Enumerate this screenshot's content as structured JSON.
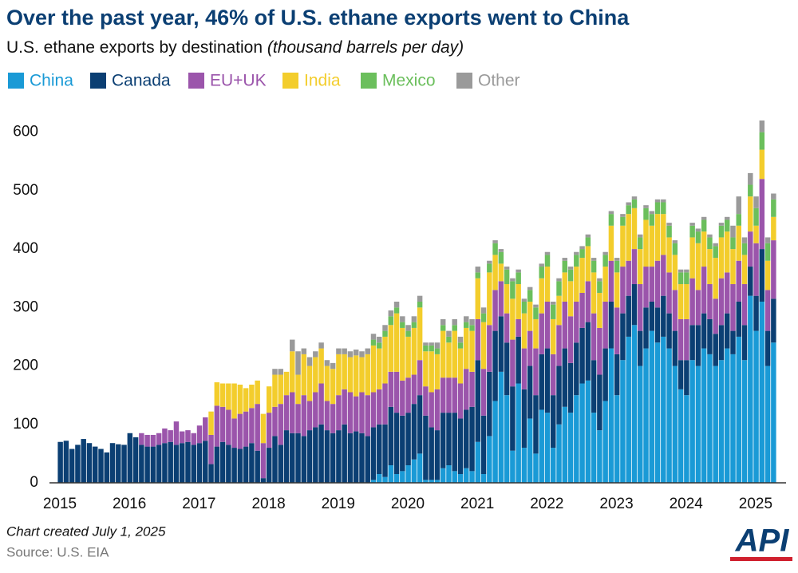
{
  "chart_data": {
    "type": "stacked_bar",
    "title": "Over the past year, 46% of U.S. ethane exports went to China",
    "subtitle": "U.S. ethane exports by destination",
    "subtitle_units": "(thousand barrels per day)",
    "note": "Chart created July 1, 2025",
    "source": "Source: U.S. EIA",
    "logo": "API",
    "categories": [
      "2015",
      null,
      null,
      null,
      null,
      null,
      null,
      null,
      null,
      null,
      null,
      null,
      "2016",
      null,
      null,
      null,
      null,
      null,
      null,
      null,
      null,
      null,
      null,
      null,
      "2017",
      null,
      null,
      null,
      null,
      null,
      null,
      null,
      null,
      null,
      null,
      null,
      "2018",
      null,
      null,
      null,
      null,
      null,
      null,
      null,
      null,
      null,
      null,
      null,
      "2019",
      null,
      null,
      null,
      null,
      null,
      null,
      null,
      null,
      null,
      null,
      null,
      "2020",
      null,
      null,
      null,
      null,
      null,
      null,
      null,
      null,
      null,
      null,
      null,
      "2021",
      null,
      null,
      null,
      null,
      null,
      null,
      null,
      null,
      null,
      null,
      null,
      "2022",
      null,
      null,
      null,
      null,
      null,
      null,
      null,
      null,
      null,
      null,
      null,
      "2023",
      null,
      null,
      null,
      null,
      null,
      null,
      null,
      null,
      null,
      null,
      null,
      "2024",
      null,
      null,
      null,
      null,
      null,
      null,
      null,
      null,
      null,
      null,
      null,
      "2025",
      null,
      null,
      null
    ],
    "ylim": [
      0,
      650
    ],
    "yticks": [
      0,
      100,
      200,
      300,
      400,
      500,
      600
    ],
    "grid": false,
    "legend": "top",
    "series": [
      {
        "name": "China",
        "color": "#1a9ad6",
        "values": [
          0,
          0,
          0,
          0,
          0,
          0,
          0,
          0,
          0,
          0,
          0,
          0,
          0,
          0,
          0,
          0,
          0,
          0,
          0,
          0,
          0,
          0,
          0,
          0,
          0,
          0,
          0,
          0,
          0,
          0,
          0,
          0,
          0,
          0,
          0,
          0,
          0,
          0,
          0,
          0,
          0,
          0,
          0,
          0,
          0,
          0,
          0,
          0,
          0,
          0,
          0,
          0,
          0,
          0,
          5,
          15,
          10,
          30,
          15,
          20,
          30,
          40,
          50,
          5,
          5,
          5,
          25,
          30,
          20,
          15,
          25,
          20,
          70,
          15,
          80,
          140,
          190,
          150,
          55,
          170,
          60,
          110,
          50,
          125,
          120,
          60,
          100,
          130,
          120,
          150,
          170,
          175,
          120,
          90,
          140,
          230,
          150,
          210,
          250,
          270,
          200,
          230,
          260,
          240,
          250,
          230,
          200,
          160,
          150,
          210,
          200,
          230,
          220,
          200,
          210,
          230,
          220,
          250,
          210,
          320,
          260,
          310,
          200,
          240
        ]
      },
      {
        "name": "Canada",
        "color": "#0b3f73",
        "values": [
          70,
          72,
          58,
          65,
          75,
          68,
          62,
          58,
          52,
          68,
          66,
          65,
          85,
          78,
          65,
          62,
          62,
          65,
          68,
          70,
          65,
          68,
          70,
          65,
          68,
          72,
          32,
          62,
          70,
          65,
          60,
          58,
          62,
          68,
          55,
          8,
          60,
          80,
          65,
          90,
          85,
          85,
          80,
          90,
          95,
          100,
          90,
          85,
          90,
          100,
          85,
          88,
          85,
          80,
          90,
          85,
          90,
          100,
          105,
          95,
          90,
          95,
          100,
          110,
          90,
          85,
          95,
          90,
          100,
          95,
          100,
          110,
          140,
          100,
          110,
          120,
          95,
          90,
          110,
          80,
          100,
          90,
          100,
          95,
          110,
          90,
          100,
          100,
          85,
          90,
          95,
          100,
          90,
          95,
          90,
          80,
          70,
          80,
          70,
          70,
          60,
          70,
          50,
          60,
          70,
          60,
          60,
          50,
          60,
          60,
          70,
          60,
          60,
          55,
          60,
          60,
          40,
          60,
          60,
          50,
          60,
          90,
          60,
          75
        ]
      },
      {
        "name": "EU+UK",
        "color": "#9b55ab",
        "values": [
          0,
          0,
          0,
          0,
          0,
          0,
          0,
          0,
          0,
          0,
          0,
          0,
          0,
          0,
          20,
          20,
          20,
          20,
          25,
          20,
          40,
          20,
          20,
          20,
          30,
          40,
          50,
          70,
          60,
          60,
          50,
          60,
          60,
          60,
          80,
          60,
          60,
          50,
          70,
          60,
          70,
          50,
          70,
          50,
          60,
          70,
          50,
          50,
          60,
          60,
          70,
          60,
          70,
          70,
          60,
          60,
          70,
          60,
          70,
          60,
          60,
          50,
          60,
          50,
          60,
          70,
          60,
          60,
          60,
          60,
          70,
          60,
          70,
          80,
          80,
          70,
          60,
          50,
          80,
          30,
          70,
          60,
          80,
          70,
          80,
          70,
          70,
          80,
          80,
          70,
          60,
          70,
          80,
          80,
          80,
          70,
          80,
          80,
          60,
          60,
          80,
          70,
          60,
          80,
          70,
          70,
          70,
          70,
          70,
          80,
          60,
          80,
          60,
          60,
          80,
          70,
          80,
          70,
          70,
          60,
          90,
          120,
          70,
          100
        ]
      },
      {
        "name": "India",
        "color": "#f3cd2c",
        "values": [
          0,
          0,
          0,
          0,
          0,
          0,
          0,
          0,
          0,
          0,
          0,
          0,
          0,
          0,
          0,
          0,
          0,
          0,
          0,
          0,
          0,
          0,
          0,
          0,
          0,
          0,
          40,
          40,
          40,
          45,
          60,
          50,
          40,
          40,
          40,
          50,
          45,
          55,
          50,
          40,
          70,
          50,
          70,
          60,
          60,
          60,
          60,
          60,
          70,
          60,
          60,
          70,
          60,
          70,
          80,
          70,
          80,
          80,
          100,
          90,
          70,
          80,
          90,
          60,
          70,
          60,
          80,
          60,
          80,
          60,
          70,
          70,
          70,
          80,
          90,
          60,
          30,
          50,
          70,
          60,
          60,
          50,
          50,
          60,
          60,
          60,
          50,
          50,
          60,
          60,
          60,
          60,
          70,
          60,
          60,
          60,
          60,
          70,
          80,
          70,
          60,
          80,
          70,
          80,
          70,
          60,
          60,
          60,
          60,
          70,
          80,
          60,
          60,
          70,
          70,
          70,
          60,
          60,
          50,
          60,
          30,
          50,
          50,
          40
        ]
      },
      {
        "name": "Mexico",
        "color": "#6bbf5c",
        "values": [
          0,
          0,
          0,
          0,
          0,
          0,
          0,
          0,
          0,
          0,
          0,
          0,
          0,
          0,
          0,
          0,
          0,
          0,
          0,
          0,
          0,
          0,
          0,
          0,
          0,
          0,
          0,
          0,
          0,
          0,
          0,
          0,
          0,
          0,
          0,
          0,
          0,
          0,
          0,
          0,
          0,
          0,
          0,
          0,
          0,
          0,
          0,
          0,
          0,
          0,
          0,
          0,
          0,
          0,
          10,
          10,
          10,
          15,
          10,
          10,
          10,
          10,
          10,
          10,
          10,
          10,
          10,
          10,
          10,
          10,
          10,
          10,
          10,
          15,
          15,
          20,
          20,
          25,
          30,
          20,
          20,
          20,
          20,
          20,
          20,
          25,
          25,
          20,
          20,
          20,
          15,
          15,
          20,
          20,
          20,
          20,
          20,
          15,
          15,
          15,
          20,
          20,
          20,
          20,
          20,
          20,
          20,
          20,
          20,
          20,
          20,
          20,
          20,
          20,
          20,
          20,
          20,
          20,
          20,
          20,
          30,
          30,
          30,
          30
        ]
      },
      {
        "name": "Other",
        "color": "#9a9a9a",
        "values": [
          0,
          0,
          0,
          0,
          0,
          0,
          0,
          0,
          0,
          0,
          0,
          0,
          0,
          0,
          0,
          0,
          0,
          0,
          0,
          0,
          0,
          0,
          0,
          0,
          0,
          0,
          0,
          0,
          0,
          0,
          0,
          0,
          0,
          0,
          0,
          0,
          0,
          10,
          10,
          0,
          20,
          40,
          10,
          15,
          10,
          10,
          10,
          10,
          10,
          10,
          10,
          10,
          10,
          10,
          10,
          10,
          10,
          10,
          10,
          10,
          10,
          10,
          10,
          5,
          5,
          10,
          10,
          10,
          10,
          10,
          10,
          10,
          10,
          10,
          5,
          5,
          5,
          5,
          5,
          5,
          5,
          5,
          5,
          5,
          5,
          5,
          5,
          5,
          5,
          5,
          5,
          5,
          5,
          5,
          5,
          5,
          5,
          5,
          5,
          5,
          5,
          5,
          5,
          5,
          5,
          5,
          5,
          5,
          5,
          5,
          5,
          5,
          5,
          5,
          5,
          5,
          20,
          30,
          10,
          20,
          20,
          20,
          10,
          10
        ]
      }
    ]
  }
}
